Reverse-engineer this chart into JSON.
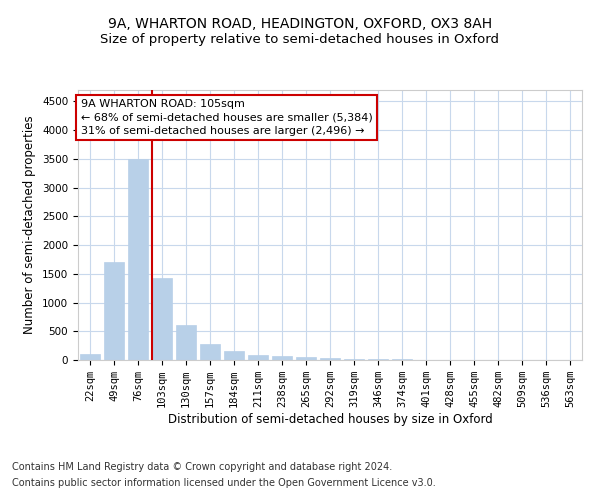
{
  "title_line1": "9A, WHARTON ROAD, HEADINGTON, OXFORD, OX3 8AH",
  "title_line2": "Size of property relative to semi-detached houses in Oxford",
  "xlabel": "Distribution of semi-detached houses by size in Oxford",
  "ylabel": "Number of semi-detached properties",
  "categories": [
    "22sqm",
    "49sqm",
    "76sqm",
    "103sqm",
    "130sqm",
    "157sqm",
    "184sqm",
    "211sqm",
    "238sqm",
    "265sqm",
    "292sqm",
    "319sqm",
    "346sqm",
    "374sqm",
    "401sqm",
    "428sqm",
    "455sqm",
    "482sqm",
    "509sqm",
    "536sqm",
    "563sqm"
  ],
  "values": [
    110,
    1700,
    3500,
    1430,
    610,
    280,
    160,
    90,
    70,
    55,
    40,
    20,
    15,
    10,
    8,
    5,
    4,
    3,
    2,
    1,
    1
  ],
  "bar_color": "#b8d0e8",
  "bar_edge_color": "#b8d0e8",
  "grid_color": "#c8d8ec",
  "background_color": "#ffffff",
  "property_line_color": "#cc0000",
  "annotation_text": "9A WHARTON ROAD: 105sqm\n← 68% of semi-detached houses are smaller (5,384)\n31% of semi-detached houses are larger (2,496) →",
  "annotation_box_color": "#cc0000",
  "ylim": [
    0,
    4700
  ],
  "yticks": [
    0,
    500,
    1000,
    1500,
    2000,
    2500,
    3000,
    3500,
    4000,
    4500
  ],
  "footnote1": "Contains HM Land Registry data © Crown copyright and database right 2024.",
  "footnote2": "Contains public sector information licensed under the Open Government Licence v3.0.",
  "title_fontsize": 10,
  "subtitle_fontsize": 9.5,
  "axis_label_fontsize": 8.5,
  "tick_fontsize": 7.5,
  "annotation_fontsize": 8,
  "footnote_fontsize": 7
}
